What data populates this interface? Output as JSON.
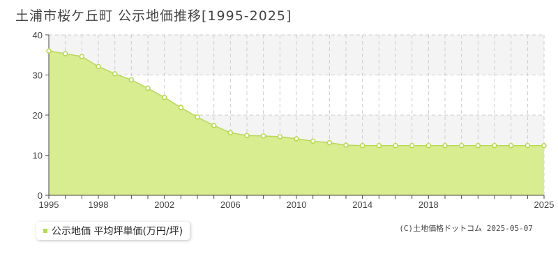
{
  "chart_data": {
    "type": "area",
    "title": "土浦市桜ケ丘町 公示地価推移[1995-2025]",
    "x": [
      1995,
      1996,
      1997,
      1998,
      1999,
      2000,
      2001,
      2002,
      2003,
      2004,
      2005,
      2006,
      2007,
      2008,
      2009,
      2010,
      2011,
      2012,
      2013,
      2014,
      2015,
      2016,
      2017,
      2018,
      2019,
      2020,
      2021,
      2022,
      2023,
      2024,
      2025
    ],
    "series": [
      {
        "name": "公示地価 平均坪単価(万円/坪)",
        "values": [
          36.0,
          35.3,
          34.6,
          32.1,
          30.3,
          28.8,
          26.7,
          24.4,
          21.9,
          19.5,
          17.4,
          15.6,
          14.9,
          14.8,
          14.6,
          14.1,
          13.5,
          13.1,
          12.5,
          12.4,
          12.4,
          12.4,
          12.4,
          12.4,
          12.4,
          12.4,
          12.4,
          12.4,
          12.4,
          12.4,
          12.4
        ]
      }
    ],
    "x_tick_labels": [
      "1995",
      "1998",
      "2002",
      "2006",
      "2010",
      "2014",
      "2018",
      "2025"
    ],
    "x_ticks": [
      1995,
      1998,
      2002,
      2006,
      2010,
      2014,
      2018,
      2025
    ],
    "y_tick_labels": [
      "0",
      "10",
      "20",
      "30",
      "40"
    ],
    "y_ticks": [
      0,
      10,
      20,
      30,
      40
    ],
    "xlim": [
      1995,
      2025
    ],
    "ylim": [
      0,
      40
    ],
    "grid": true,
    "legend_position": "bottom-left",
    "colors": {
      "fill": "#d8ec90",
      "line": "#b9d85a",
      "point_fill": "#ffffff",
      "point_stroke": "#b5d94a",
      "band": "#f4f4f4",
      "grid": "#cccccc"
    }
  },
  "credit": "(C)土地価格ドットコム 2025-05-07"
}
